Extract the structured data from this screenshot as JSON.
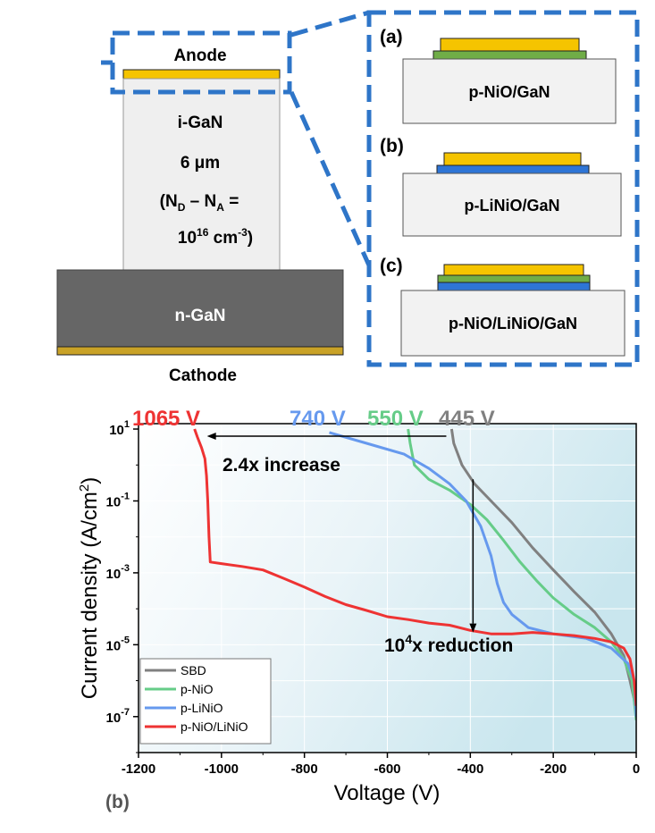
{
  "device": {
    "anode": "Anode",
    "drift_name": "i-GaN",
    "drift_thickness": "6 μm",
    "doping_line1": "(N",
    "doping_sub_d": "D",
    "doping_mid": " – N",
    "doping_sub_a": "A",
    "doping_eq": " =",
    "doping_line2_base": "10",
    "doping_line2_exp": "16",
    "doping_line2_unit": " cm",
    "doping_line2_exp2": "-3",
    "doping_line2_close": ")",
    "substrate": "n-GaN",
    "cathode": "Cathode"
  },
  "variants": [
    {
      "tag": "(a)",
      "label": "p-NiO/GaN"
    },
    {
      "tag": "(b)",
      "label": "p-LiNiO/GaN"
    },
    {
      "tag": "(c)",
      "label": "p-NiO/LiNiO/GaN"
    }
  ],
  "colors": {
    "anode_gold": "#F5C400",
    "nio_green": "#70AD47",
    "linio_blue": "#2E75D6",
    "callout_blue": "#2E75C8",
    "cathode_gold": "#C9A227",
    "sbd": "#808080",
    "p_nio": "#66CC88",
    "p_linio": "#6699EE",
    "p_nio_linio": "#EE3333"
  },
  "chart_data": {
    "type": "line",
    "panel_label": "(b)",
    "xlabel": "Voltage (V)",
    "ylabel": "Current density (A/cm²)",
    "xlim": [
      -1200,
      0
    ],
    "ylim_log10": [
      -8,
      1.15
    ],
    "y_scale": "log",
    "x_ticks": [
      -1200,
      -1000,
      -800,
      -600,
      -400,
      -200,
      0
    ],
    "x_tick_labels": [
      "-1200",
      "-1000",
      "-800",
      "-600",
      "-400",
      "-200",
      "0"
    ],
    "y_tick_base": "10",
    "y_ticks": [
      {
        "exp": "1",
        "log": 1
      },
      {
        "exp": "-1",
        "log": -1
      },
      {
        "exp": "-3",
        "log": -3
      },
      {
        "exp": "-5",
        "log": -5
      },
      {
        "exp": "-7",
        "log": -7
      }
    ],
    "legend_position": "bottom-left",
    "series": [
      {
        "name": "SBD",
        "color": "#808080",
        "points": [
          [
            -445,
            10
          ],
          [
            -440,
            4
          ],
          [
            -420,
            1
          ],
          [
            -390,
            0.3
          ],
          [
            -350,
            0.1
          ],
          [
            -300,
            0.025
          ],
          [
            -250,
            0.005
          ],
          [
            -200,
            0.0012
          ],
          [
            -150,
            0.0003
          ],
          [
            -100,
            8e-05
          ],
          [
            -60,
            2e-05
          ],
          [
            -30,
            5e-06
          ],
          [
            -15,
            1e-06
          ],
          [
            -5,
            3e-07
          ],
          [
            0,
            1e-07
          ]
        ]
      },
      {
        "name": "p-NiO",
        "color": "#66CC88",
        "points": [
          [
            -550,
            10
          ],
          [
            -545,
            4
          ],
          [
            -535,
            1
          ],
          [
            -500,
            0.4
          ],
          [
            -450,
            0.2
          ],
          [
            -400,
            0.08
          ],
          [
            -360,
            0.03
          ],
          [
            -320,
            0.008
          ],
          [
            -280,
            0.002
          ],
          [
            -240,
            0.0006
          ],
          [
            -200,
            0.0002
          ],
          [
            -150,
            7e-05
          ],
          [
            -100,
            3e-05
          ],
          [
            -60,
            1.2e-05
          ],
          [
            -30,
            4e-06
          ],
          [
            -10,
            1e-06
          ],
          [
            0,
            8e-08
          ]
        ]
      },
      {
        "name": "p-LiNiO",
        "color": "#6699EE",
        "points": [
          [
            -740,
            8
          ],
          [
            -650,
            4
          ],
          [
            -560,
            2
          ],
          [
            -500,
            0.8
          ],
          [
            -450,
            0.3
          ],
          [
            -410,
            0.1
          ],
          [
            -375,
            0.02
          ],
          [
            -350,
            0.003
          ],
          [
            -335,
            0.0005
          ],
          [
            -320,
            0.00015
          ],
          [
            -300,
            7e-05
          ],
          [
            -260,
            3e-05
          ],
          [
            -200,
            2e-05
          ],
          [
            -120,
            1.5e-05
          ],
          [
            -60,
            8e-06
          ],
          [
            -20,
            3e-06
          ],
          [
            -5,
            1e-06
          ],
          [
            0,
            1e-07
          ]
        ]
      },
      {
        "name": "p-NiO/LiNiO",
        "color": "#EE3333",
        "points": [
          [
            -1065,
            10
          ],
          [
            -1058,
            6
          ],
          [
            -1048,
            3
          ],
          [
            -1040,
            1.5
          ],
          [
            -1036,
            0.5
          ],
          [
            -1033,
            0.1
          ],
          [
            -1030,
            0.01
          ],
          [
            -1027,
            0.002
          ],
          [
            -1000,
            0.0018
          ],
          [
            -950,
            0.0015
          ],
          [
            -900,
            0.0012
          ],
          [
            -850,
            0.0007
          ],
          [
            -800,
            0.0004
          ],
          [
            -750,
            0.00022
          ],
          [
            -700,
            0.00013
          ],
          [
            -650,
            9e-05
          ],
          [
            -600,
            6e-05
          ],
          [
            -550,
            5e-05
          ],
          [
            -500,
            4e-05
          ],
          [
            -450,
            3.5e-05
          ],
          [
            -400,
            2.5e-05
          ],
          [
            -350,
            2e-05
          ],
          [
            -300,
            2e-05
          ],
          [
            -250,
            2.2e-05
          ],
          [
            -200,
            2e-05
          ],
          [
            -150,
            1.8e-05
          ],
          [
            -100,
            1.5e-05
          ],
          [
            -60,
            1.2e-05
          ],
          [
            -30,
            8e-06
          ],
          [
            -15,
            4e-06
          ],
          [
            -5,
            1e-06
          ],
          [
            0,
            2e-07
          ]
        ]
      }
    ],
    "annotations": {
      "bv_p_nio_linio": "1065 V",
      "bv_p_linio": "740 V",
      "bv_p_nio": "550 V",
      "bv_sbd": "445 V",
      "increase_text": "2.4x increase",
      "reduction_base": "10",
      "reduction_exp": "4",
      "reduction_rest": "x reduction"
    },
    "arrow_increase": {
      "from_x": -445,
      "to_x": -1065,
      "y": 10
    },
    "arrow_reduction": {
      "x": -400,
      "from_y": 0.4,
      "to_y": 2.2e-05
    }
  }
}
